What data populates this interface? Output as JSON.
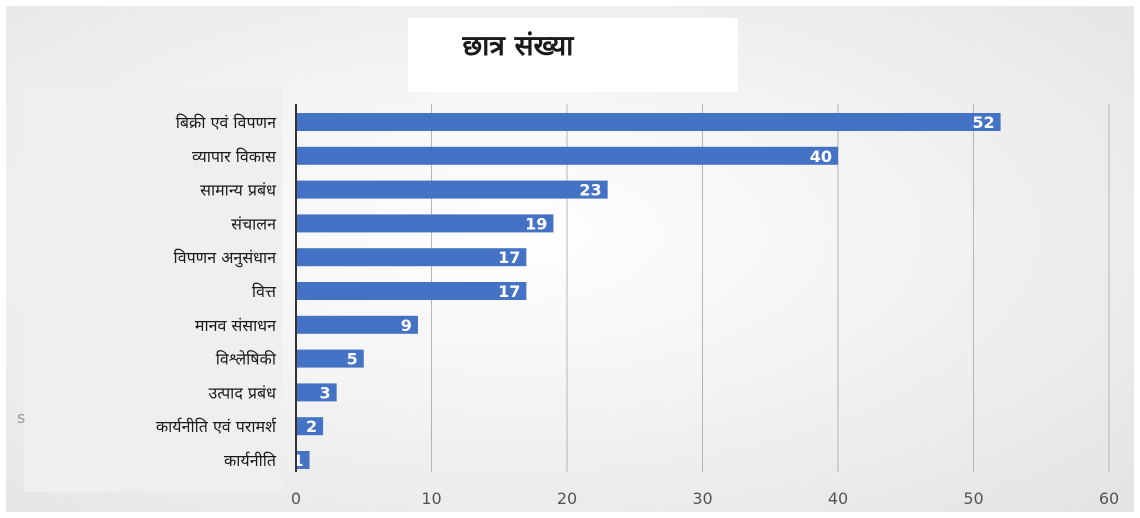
{
  "chart_data": {
    "type": "bar",
    "orientation": "horizontal",
    "title": "छात्र संख्या",
    "categories": [
      "बिक्री एवं विपणन",
      "व्यापार विकास",
      "सामान्य प्रबंध",
      "संचालन",
      "विपणन अनुसंधान",
      "वित्त",
      "मानव संसाधन",
      "विश्लेषिकी",
      "उत्पाद प्रबंध",
      "कार्यनीति एवं परामर्श",
      "कार्यनीति"
    ],
    "values": [
      52,
      40,
      23,
      19,
      17,
      17,
      9,
      5,
      3,
      2,
      1
    ],
    "xlim": [
      0,
      60
    ],
    "xticks": [
      0,
      10,
      20,
      30,
      40,
      50,
      60
    ],
    "grid": true,
    "legend": "none",
    "colors": {
      "bar": "#4472c4",
      "grid": "#b5b5b5",
      "axis": "#333333",
      "tick_label": "#555555",
      "data_label": "#ffffff",
      "category_label": "#1a1a1a"
    }
  },
  "stray_mark": "s"
}
